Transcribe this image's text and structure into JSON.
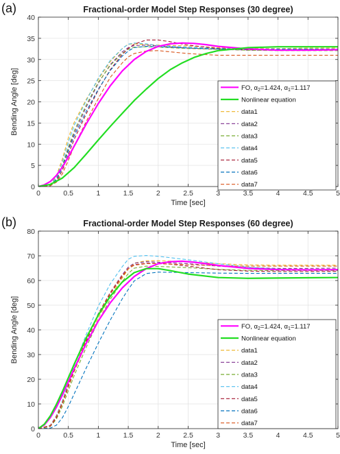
{
  "chart_data": [
    {
      "panel_label": "(a)",
      "type": "line",
      "title": "Fractional-order Model Step Responses (30 degree)",
      "xlabel": "Time [sec]",
      "ylabel": "Bending Angle [deg]",
      "xlim": [
        0,
        5
      ],
      "ylim": [
        0,
        40
      ],
      "xticks": [
        0,
        0.5,
        1,
        1.5,
        2,
        2.5,
        3,
        3.5,
        4,
        4.5,
        5
      ],
      "xtick_labels": [
        "0",
        "0.5",
        "1",
        "1.5",
        "2",
        "2.5",
        "3",
        "3.5",
        "4",
        "4.5",
        "5"
      ],
      "yticks": [
        0,
        5,
        10,
        15,
        20,
        25,
        30,
        35,
        40
      ],
      "ytick_labels": [
        "0",
        "5",
        "10",
        "15",
        "20",
        "25",
        "30",
        "35",
        "40"
      ],
      "grid": true,
      "legend_position": "center-right",
      "series": [
        {
          "name": "FO, α2=1.424, α1=1.117",
          "legend_main": "FO, ",
          "legend_a2": "α",
          "legend_a2_sub": "2",
          "legend_a2_val": "=1.424, ",
          "legend_a1": "α",
          "legend_a1_sub": "1",
          "legend_a1_val": "=1.117",
          "color": "#ff00ff",
          "dash": "solid",
          "width": 2.2,
          "x": [
            0,
            0.1,
            0.2,
            0.3,
            0.4,
            0.5,
            0.6,
            0.8,
            1.0,
            1.2,
            1.4,
            1.6,
            1.8,
            2.0,
            2.2,
            2.4,
            2.6,
            2.8,
            3.0,
            3.5,
            4.0,
            4.5,
            5.0
          ],
          "y": [
            0,
            0.4,
            1.2,
            2.6,
            4.6,
            7.0,
            9.6,
            14.8,
            19.6,
            23.8,
            27.3,
            30.0,
            31.9,
            33.1,
            33.7,
            33.9,
            33.8,
            33.5,
            33.1,
            32.5,
            32.2,
            32.2,
            32.3
          ]
        },
        {
          "name": "Nonlinear equation",
          "legend_main": "Nonlinear equation",
          "color": "#22dd22",
          "dash": "solid",
          "width": 2.2,
          "x": [
            0,
            0.2,
            0.4,
            0.6,
            0.8,
            1.0,
            1.2,
            1.4,
            1.6,
            1.8,
            2.0,
            2.2,
            2.4,
            2.6,
            2.8,
            3.0,
            3.5,
            4.0,
            4.5,
            5.0
          ],
          "y": [
            0,
            0.5,
            2.0,
            4.5,
            7.7,
            11.0,
            14.2,
            17.3,
            20.3,
            23.0,
            25.5,
            27.6,
            29.2,
            30.5,
            31.4,
            32.1,
            32.8,
            33.0,
            33.0,
            33.0
          ]
        },
        {
          "name": "data1",
          "color": "#edb120",
          "dash": "dashed",
          "width": 1.1,
          "x": [
            0,
            0.2,
            0.3,
            0.4,
            0.5,
            0.6,
            0.8,
            1.0,
            1.2,
            1.4,
            1.5,
            1.6,
            1.8,
            2.0,
            2.5,
            3.0,
            3.5,
            4.0,
            4.5,
            5.0
          ],
          "y": [
            0,
            0.5,
            2.5,
            6.5,
            11.5,
            15.2,
            20.6,
            25.3,
            29.5,
            32.6,
            33.6,
            33.7,
            33.5,
            33.4,
            33.2,
            32.8,
            32.6,
            32.6,
            32.7,
            32.7
          ]
        },
        {
          "name": "data2",
          "color": "#7e2f8e",
          "dash": "dashed",
          "width": 1.1,
          "x": [
            0,
            0.2,
            0.3,
            0.4,
            0.5,
            0.6,
            0.8,
            1.0,
            1.2,
            1.4,
            1.5,
            1.6,
            1.8,
            2.0,
            2.5,
            3.0,
            3.5,
            4.0,
            4.5,
            5.0
          ],
          "y": [
            0,
            0.3,
            1.6,
            4.6,
            8.8,
            12.6,
            18.8,
            24.4,
            28.8,
            31.8,
            32.8,
            33.3,
            33.4,
            33.2,
            32.7,
            32.4,
            32.2,
            32.2,
            32.3,
            32.3
          ]
        },
        {
          "name": "data3",
          "color": "#77ac30",
          "dash": "dashed",
          "width": 1.1,
          "x": [
            0,
            0.2,
            0.3,
            0.4,
            0.5,
            0.6,
            0.8,
            1.0,
            1.2,
            1.4,
            1.5,
            1.6,
            1.8,
            2.0,
            2.5,
            3.0,
            3.5,
            4.0,
            4.5,
            5.0
          ],
          "y": [
            0,
            0.3,
            1.8,
            5.0,
            9.3,
            13.2,
            19.3,
            24.6,
            28.6,
            31.5,
            32.4,
            32.9,
            33.0,
            32.9,
            32.6,
            32.4,
            32.2,
            32.1,
            32.1,
            32.1
          ]
        },
        {
          "name": "data4",
          "color": "#4dbeee",
          "dash": "dashed",
          "width": 1.1,
          "x": [
            0,
            0.2,
            0.3,
            0.4,
            0.5,
            0.6,
            0.8,
            1.0,
            1.2,
            1.4,
            1.5,
            1.6,
            1.8,
            2.0,
            2.5,
            3.0,
            3.5,
            4.0,
            4.5,
            5.0
          ],
          "y": [
            0,
            0.4,
            2.2,
            5.8,
            10.5,
            14.5,
            20.3,
            25.6,
            29.8,
            32.6,
            33.6,
            33.9,
            33.7,
            33.3,
            32.9,
            32.6,
            32.5,
            32.5,
            32.5,
            32.5
          ]
        },
        {
          "name": "data5",
          "color": "#a2142f",
          "dash": "dashed",
          "width": 1.1,
          "x": [
            0,
            0.2,
            0.3,
            0.4,
            0.5,
            0.6,
            0.8,
            1.0,
            1.2,
            1.4,
            1.5,
            1.6,
            1.8,
            2.0,
            2.2,
            2.5,
            3.0,
            3.5,
            4.0,
            4.5,
            5.0
          ],
          "y": [
            0,
            0.2,
            1.2,
            3.8,
            7.6,
            11.2,
            17.2,
            22.8,
            27.6,
            31.2,
            32.6,
            33.6,
            34.6,
            34.6,
            34.2,
            33.4,
            32.6,
            32.3,
            32.3,
            32.4,
            32.4
          ]
        },
        {
          "name": "data6",
          "color": "#0072bd",
          "dash": "dashed",
          "width": 1.1,
          "x": [
            0,
            0.2,
            0.3,
            0.4,
            0.5,
            0.6,
            0.8,
            1.0,
            1.2,
            1.4,
            1.5,
            1.6,
            1.8,
            2.0,
            2.5,
            3.0,
            3.5,
            4.0,
            4.5,
            5.0
          ],
          "y": [
            0,
            0.3,
            1.6,
            4.4,
            8.4,
            12.0,
            17.8,
            23.0,
            27.4,
            30.8,
            32.0,
            32.8,
            33.1,
            33.0,
            32.7,
            32.5,
            32.4,
            32.4,
            32.4,
            32.4
          ]
        },
        {
          "name": "data7",
          "color": "#d95319",
          "dash": "dashed",
          "width": 1.1,
          "x": [
            0,
            0.2,
            0.3,
            0.4,
            0.5,
            0.6,
            0.8,
            1.0,
            1.2,
            1.4,
            1.5,
            1.6,
            1.8,
            2.0,
            2.2,
            2.5,
            3.0,
            3.5,
            4.0,
            4.5,
            5.0
          ],
          "y": [
            0,
            0.2,
            1.0,
            3.0,
            6.2,
            9.6,
            15.4,
            20.8,
            25.8,
            29.2,
            30.6,
            31.4,
            32.0,
            32.1,
            31.8,
            31.4,
            31.0,
            31.0,
            31.0,
            31.0,
            31.0
          ]
        }
      ]
    },
    {
      "panel_label": "(b)",
      "type": "line",
      "title": "Fractional-order Model Step Responses (60 degree)",
      "xlabel": "Time [sec]",
      "ylabel": "Bending Angle [deg]",
      "xlim": [
        0,
        5
      ],
      "ylim": [
        0,
        80
      ],
      "xticks": [
        0,
        0.5,
        1,
        1.5,
        2,
        2.5,
        3,
        3.5,
        4,
        4.5,
        5
      ],
      "xtick_labels": [
        "0",
        "0.5",
        "1",
        "1.5",
        "2",
        "2.5",
        "3",
        "3.5",
        "4",
        "4.5",
        "5"
      ],
      "yticks": [
        0,
        10,
        20,
        30,
        40,
        50,
        60,
        70,
        80
      ],
      "ytick_labels": [
        "0",
        "10",
        "20",
        "30",
        "40",
        "50",
        "60",
        "70",
        "80"
      ],
      "grid": true,
      "legend_position": "center-right",
      "series": [
        {
          "name": "FO, α2=1.424, α1=1.117",
          "legend_main": "FO, ",
          "legend_a2": "α",
          "legend_a2_sub": "2",
          "legend_a2_val": "=1.424, ",
          "legend_a1": "α",
          "legend_a1_sub": "1",
          "legend_a1_val": "=1.117",
          "color": "#ff00ff",
          "dash": "solid",
          "width": 2.2,
          "x": [
            0,
            0.1,
            0.2,
            0.3,
            0.4,
            0.5,
            0.6,
            0.8,
            1.0,
            1.2,
            1.4,
            1.6,
            1.8,
            2.0,
            2.2,
            2.4,
            2.6,
            2.8,
            3.0,
            3.5,
            4.0,
            4.5,
            5.0
          ],
          "y": [
            0,
            1.5,
            4.5,
            8.6,
            13.6,
            19.0,
            24.4,
            34.6,
            43.6,
            51.0,
            57.0,
            61.6,
            64.8,
            66.8,
            67.6,
            67.8,
            67.4,
            66.8,
            66.1,
            64.9,
            64.4,
            64.3,
            64.4
          ]
        },
        {
          "name": "Nonlinear equation",
          "legend_main": "Nonlinear equation",
          "color": "#22dd22",
          "dash": "solid",
          "width": 2.2,
          "x": [
            0,
            0.1,
            0.2,
            0.3,
            0.4,
            0.5,
            0.6,
            0.8,
            1.0,
            1.2,
            1.4,
            1.6,
            1.8,
            2.0,
            2.2,
            2.5,
            3.0,
            3.5,
            4.0,
            4.5,
            5.0
          ],
          "y": [
            0,
            1.8,
            5.2,
            9.8,
            15.0,
            20.6,
            26.2,
            36.8,
            46.0,
            53.6,
            59.4,
            63.2,
            64.8,
            64.8,
            64.0,
            62.6,
            61.2,
            60.9,
            61.0,
            61.1,
            61.2
          ]
        },
        {
          "name": "data1",
          "color": "#edb120",
          "dash": "dashed",
          "width": 1.1,
          "x": [
            0,
            0.2,
            0.3,
            0.4,
            0.5,
            0.6,
            0.8,
            1.0,
            1.2,
            1.4,
            1.5,
            1.6,
            1.8,
            2.0,
            2.5,
            3.0,
            3.5,
            4.0,
            4.5,
            5.0
          ],
          "y": [
            0,
            1.0,
            4.2,
            10.0,
            16.8,
            23.2,
            34.6,
            44.8,
            53.6,
            61.0,
            64.6,
            67.0,
            68.0,
            68.0,
            67.6,
            66.8,
            66.3,
            66.2,
            66.2,
            66.2
          ]
        },
        {
          "name": "data2",
          "color": "#7e2f8e",
          "dash": "dashed",
          "width": 1.1,
          "x": [
            0,
            0.2,
            0.3,
            0.4,
            0.5,
            0.6,
            0.8,
            1.0,
            1.2,
            1.4,
            1.5,
            1.6,
            1.8,
            2.0,
            2.5,
            3.0,
            3.5,
            4.0,
            4.5,
            5.0
          ],
          "y": [
            0,
            1.4,
            5.2,
            11.2,
            18.0,
            24.4,
            36.0,
            46.6,
            55.2,
            62.4,
            65.4,
            67.0,
            67.6,
            67.4,
            66.8,
            65.8,
            65.2,
            64.9,
            64.9,
            65.0
          ]
        },
        {
          "name": "data3",
          "color": "#77ac30",
          "dash": "dashed",
          "width": 1.1,
          "x": [
            0,
            0.2,
            0.3,
            0.4,
            0.5,
            0.6,
            0.8,
            1.0,
            1.2,
            1.4,
            1.5,
            1.6,
            1.8,
            2.0,
            2.5,
            3.0,
            3.5,
            4.0,
            4.5,
            5.0
          ],
          "y": [
            0,
            0.9,
            3.8,
            9.0,
            15.4,
            21.6,
            33.0,
            43.6,
            52.4,
            59.6,
            62.8,
            65.0,
            65.8,
            65.7,
            65.2,
            64.5,
            64.1,
            64.0,
            64.0,
            64.0
          ]
        },
        {
          "name": "data4",
          "color": "#4dbeee",
          "dash": "dashed",
          "width": 1.1,
          "x": [
            0,
            0.2,
            0.3,
            0.4,
            0.5,
            0.6,
            0.8,
            1.0,
            1.2,
            1.4,
            1.5,
            1.6,
            1.8,
            2.0,
            2.5,
            3.0,
            3.5,
            4.0,
            4.5,
            5.0
          ],
          "y": [
            0,
            1.2,
            5.0,
            11.2,
            18.6,
            25.6,
            38.2,
            49.6,
            58.6,
            65.6,
            68.6,
            69.8,
            70.1,
            69.8,
            68.4,
            66.8,
            65.4,
            64.6,
            64.3,
            64.3
          ]
        },
        {
          "name": "data5",
          "color": "#a2142f",
          "dash": "dashed",
          "width": 1.1,
          "x": [
            0,
            0.2,
            0.3,
            0.4,
            0.5,
            0.6,
            0.8,
            1.0,
            1.2,
            1.4,
            1.5,
            1.6,
            1.8,
            2.0,
            2.2,
            2.5,
            3.0,
            3.5,
            4.0,
            4.5,
            5.0
          ],
          "y": [
            0,
            1.0,
            4.4,
            10.2,
            17.0,
            23.6,
            35.4,
            46.0,
            54.6,
            61.6,
            64.8,
            66.4,
            67.0,
            66.9,
            66.6,
            65.8,
            64.4,
            63.8,
            63.6,
            63.6,
            63.7
          ]
        },
        {
          "name": "data6",
          "color": "#0072bd",
          "dash": "dashed",
          "width": 1.1,
          "x": [
            0,
            0.2,
            0.3,
            0.4,
            0.5,
            0.6,
            0.8,
            1.0,
            1.2,
            1.4,
            1.5,
            1.6,
            1.8,
            2.0,
            2.5,
            3.0,
            3.5,
            4.0,
            4.5,
            5.0
          ],
          "y": [
            0,
            0.2,
            1.4,
            4.4,
            9.0,
            14.2,
            24.6,
            34.6,
            44.0,
            52.6,
            56.4,
            59.8,
            62.8,
            63.4,
            63.2,
            63.0,
            62.9,
            62.9,
            62.9,
            62.9
          ]
        },
        {
          "name": "data7",
          "color": "#d95319",
          "dash": "dashed",
          "width": 1.1,
          "x": [
            0,
            0.2,
            0.3,
            0.4,
            0.5,
            0.6,
            0.8,
            1.0,
            1.2,
            1.4,
            1.5,
            1.6,
            1.8,
            2.0,
            2.5,
            3.0,
            3.5,
            4.0,
            4.5,
            5.0
          ],
          "y": [
            0,
            1.2,
            4.8,
            10.6,
            17.6,
            24.2,
            36.0,
            46.4,
            55.0,
            62.0,
            64.8,
            66.2,
            66.8,
            66.8,
            66.4,
            66.0,
            65.8,
            65.8,
            65.8,
            65.8
          ]
        }
      ]
    }
  ]
}
